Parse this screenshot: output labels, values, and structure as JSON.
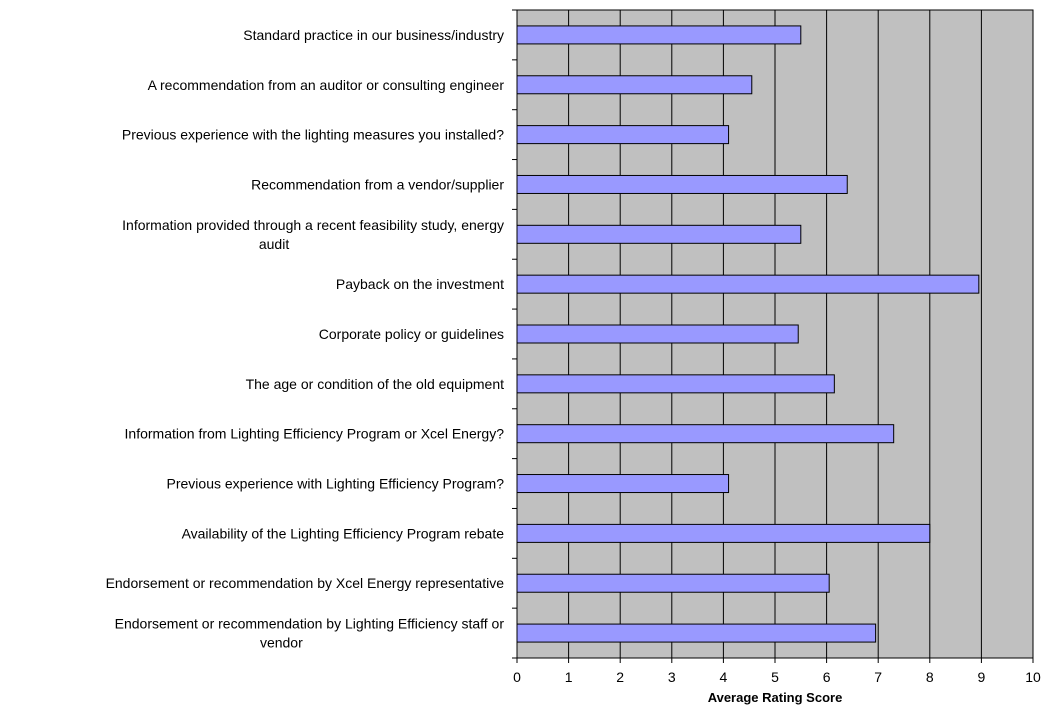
{
  "chart_data": {
    "type": "bar",
    "orientation": "horizontal",
    "categories": [
      [
        "Standard practice in our business/industry"
      ],
      [
        "A recommendation from an auditor or consulting engineer"
      ],
      [
        "Previous experience with the lighting measures you installed?"
      ],
      [
        "Recommendation from a vendor/supplier"
      ],
      [
        "Information provided through a recent feasibility study, energy",
        "audit"
      ],
      [
        "Payback on the investment"
      ],
      [
        "Corporate policy or guidelines"
      ],
      [
        "The age or condition of the old equipment"
      ],
      [
        "Information from Lighting Efficiency Program or Xcel Energy?"
      ],
      [
        "Previous experience with Lighting Efficiency Program?"
      ],
      [
        "Availability of the Lighting Efficiency Program rebate"
      ],
      [
        "Endorsement or recommendation by Xcel Energy representative"
      ],
      [
        "Endorsement or recommendation by Lighting Efficiency staff or",
        "vendor"
      ]
    ],
    "values": [
      5.5,
      4.55,
      4.1,
      6.4,
      5.5,
      8.95,
      5.45,
      6.15,
      7.3,
      4.1,
      8.0,
      6.05,
      6.95
    ],
    "title": "",
    "xlabel": "Average Rating Score",
    "ylabel": "",
    "xlim": [
      0,
      10
    ],
    "xticks": [
      "0",
      "1",
      "2",
      "3",
      "4",
      "5",
      "6",
      "7",
      "8",
      "9",
      "10"
    ],
    "grid": true,
    "legend": "none",
    "colors": {
      "bar_fill": "#9999ff",
      "bar_stroke": "#000000",
      "plot_background": "#c0c0c0",
      "gridline": "#000000"
    }
  }
}
